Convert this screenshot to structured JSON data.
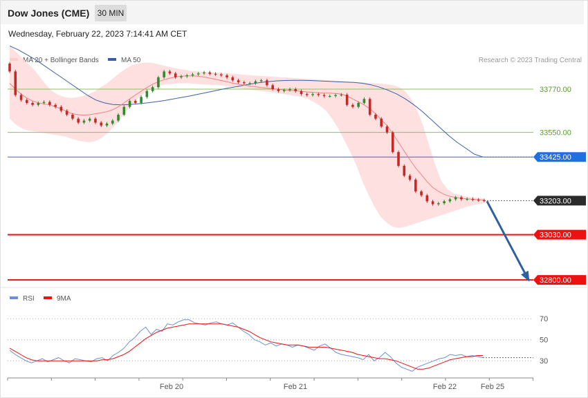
{
  "header": {
    "title": "Dow Jones (CME)",
    "timeframe": "30 MIN"
  },
  "timestamp": "Wednesday, February 22, 2023 7:14:41 AM CET",
  "legend": {
    "ma20": "MA 20 + Bollinger Bands",
    "ma50": "MA 50",
    "rsi": "RSI",
    "ma9": "9MA"
  },
  "credit": "Research © 2023 Trading Central",
  "colors": {
    "bullish": "#2e8b2e",
    "bearish": "#c62828",
    "bollinger": "#ffdada",
    "ma20": "#f08080",
    "ma50": "#3a5fa8",
    "pivot": "#3366dd",
    "support": "#ee1111",
    "resistance": "#8cc060",
    "rsi": "#6a8fd8",
    "rsi_ma": "#ee1111",
    "arrow": "#2f5f9f"
  },
  "chart_data": [
    {
      "type": "candlestick",
      "title": "Dow Jones (CME)",
      "timeframe": "30 MIN",
      "x_ticks": [
        "Feb 20",
        "Feb 21",
        "Feb 22",
        "Feb 25"
      ],
      "y_range": [
        32790,
        33900
      ],
      "levels": [
        {
          "label": "33770.00",
          "value": 33770,
          "kind": "resistance"
        },
        {
          "label": "33550.00",
          "value": 33550,
          "kind": "resistance"
        },
        {
          "label": "33425.00",
          "value": 33425,
          "kind": "pivot"
        },
        {
          "label": "33203.00",
          "value": 33203,
          "kind": "last"
        },
        {
          "label": "33030.00",
          "value": 33030,
          "kind": "support"
        },
        {
          "label": "32800.00",
          "value": 32800,
          "kind": "support"
        }
      ],
      "close_path": [
        33860,
        33740,
        33715,
        33700,
        33690,
        33700,
        33705,
        33690,
        33680,
        33660,
        33640,
        33620,
        33600,
        33610,
        33620,
        33600,
        33585,
        33595,
        33610,
        33640,
        33680,
        33710,
        33700,
        33730,
        33760,
        33780,
        33830,
        33860,
        33850,
        33830,
        33835,
        33840,
        33845,
        33850,
        33855,
        33848,
        33845,
        33840,
        33830,
        33815,
        33805,
        33800,
        33800,
        33810,
        33815,
        33790,
        33770,
        33760,
        33765,
        33770,
        33760,
        33745,
        33740,
        33745,
        33740,
        33735,
        33735,
        33740,
        33742,
        33690,
        33680,
        33700,
        33720,
        33640,
        33620,
        33580,
        33550,
        33450,
        33380,
        33330,
        33310,
        33250,
        33230,
        33200,
        33185,
        33190,
        33200,
        33210,
        33220,
        33210,
        33212,
        33208,
        33205,
        33203
      ],
      "ma20": [
        33800,
        33770,
        33745,
        33725,
        33710,
        33700,
        33695,
        33690,
        33680,
        33670,
        33655,
        33645,
        33640,
        33638,
        33640,
        33645,
        33650,
        33655,
        33665,
        33680,
        33700,
        33720,
        33740,
        33760,
        33778,
        33795,
        33808,
        33818,
        33826,
        33832,
        33836,
        33838,
        33838,
        33836,
        33832,
        33826,
        33820,
        33814,
        33808,
        33800,
        33795,
        33790,
        33786,
        33782,
        33778,
        33775,
        33772,
        33769,
        33766,
        33764,
        33762,
        33759,
        33756,
        33754,
        33752,
        33750,
        33750,
        33748,
        33745,
        33735,
        33720,
        33705,
        33690,
        33670,
        33645,
        33615,
        33585,
        33545,
        33500,
        33455,
        33410,
        33370,
        33335,
        33300,
        33270,
        33250,
        33235,
        33225,
        33220,
        33215,
        33212,
        33210,
        33208,
        33206
      ],
      "ma50": [
        33990,
        33970,
        33945,
        33920,
        33890,
        33860,
        33830,
        33800,
        33770,
        33740,
        33715,
        33700,
        33692,
        33690,
        33692,
        33696,
        33700,
        33706,
        33712,
        33720,
        33728,
        33736,
        33745,
        33754,
        33763,
        33772,
        33780,
        33788,
        33796,
        33803,
        33808,
        33812,
        33814,
        33815,
        33815,
        33814,
        33812,
        33810,
        33808,
        33806,
        33804,
        33800,
        33792,
        33780,
        33764,
        33745,
        33720,
        33690,
        33655,
        33615,
        33575,
        33535,
        33500,
        33470,
        33440,
        33425
      ],
      "bollinger_upper": [
        33990,
        33960,
        33930,
        33900,
        33870,
        33830,
        33790,
        33760,
        33740,
        33730,
        33725,
        33728,
        33735,
        33745,
        33760,
        33780,
        33800,
        33825,
        33850,
        33872,
        33890,
        33900,
        33905,
        33905,
        33900,
        33892,
        33885,
        33878,
        33872,
        33867,
        33863,
        33860,
        33858,
        33856,
        33854,
        33852,
        33850,
        33848,
        33845,
        33842,
        33840,
        33838,
        33836,
        33834,
        33832,
        33830,
        33828,
        33826,
        33824,
        33822,
        33820,
        33818,
        33816,
        33814,
        33812,
        33810,
        33808,
        33806,
        33804,
        33802,
        33800,
        33798,
        33795,
        33790,
        33780,
        33760,
        33720,
        33660,
        33580,
        33480,
        33380,
        33300,
        33260,
        33240,
        33232,
        33225,
        33220,
        33218,
        33215
      ],
      "bollinger_lower": [
        33620,
        33590,
        33570,
        33560,
        33555,
        33550,
        33545,
        33540,
        33535,
        33530,
        33520,
        33510,
        33505,
        33500,
        33505,
        33520,
        33545,
        33575,
        33610,
        33650,
        33690,
        33720,
        33745,
        33765,
        33780,
        33790,
        33795,
        33798,
        33800,
        33800,
        33798,
        33796,
        33794,
        33792,
        33790,
        33788,
        33784,
        33780,
        33775,
        33770,
        33766,
        33762,
        33758,
        33754,
        33750,
        33745,
        33740,
        33735,
        33730,
        33720,
        33705,
        33685,
        33660,
        33620,
        33570,
        33510,
        33450,
        33380,
        33300,
        33230,
        33170,
        33120,
        33090,
        33070,
        33065,
        33070,
        33080,
        33090,
        33100,
        33110,
        33120,
        33130,
        33140,
        33150,
        33160,
        33170,
        33180,
        33185,
        33190
      ],
      "forecast_arrow": {
        "from": 33200,
        "to": 32800
      }
    },
    {
      "type": "line",
      "title": "RSI",
      "y_ticks": [
        70,
        50,
        30
      ],
      "y_range": [
        15,
        80
      ],
      "series": [
        {
          "name": "RSI",
          "values": [
            40,
            36,
            33,
            30,
            28,
            30,
            32,
            29,
            31,
            33,
            30,
            28,
            32,
            31,
            30,
            29,
            32,
            33,
            30,
            35,
            38,
            42,
            48,
            52,
            58,
            62,
            55,
            60,
            58,
            65,
            64,
            67,
            69,
            69,
            66,
            65,
            64,
            66,
            67,
            65,
            64,
            66,
            62,
            58,
            55,
            50,
            48,
            45,
            47,
            44,
            46,
            45,
            43,
            45,
            44,
            42,
            40,
            44,
            46,
            42,
            38,
            36,
            35,
            34,
            33,
            31,
            36,
            30,
            33,
            38,
            34,
            28,
            24,
            22,
            20,
            24,
            26,
            28,
            30,
            32,
            33,
            36,
            35,
            36,
            34,
            35,
            34,
            33
          ]
        },
        {
          "name": "9MA",
          "values": [
            42,
            39,
            36,
            33,
            31,
            30,
            30,
            30,
            30,
            30,
            30,
            30,
            30,
            30,
            30,
            30,
            30,
            31,
            31,
            32,
            34,
            36,
            39,
            43,
            47,
            51,
            54,
            57,
            59,
            61,
            62,
            63,
            64,
            65,
            65,
            65,
            65,
            65,
            65,
            65,
            64,
            63,
            62,
            60,
            58,
            55,
            52,
            50,
            48,
            47,
            46,
            45,
            45,
            45,
            44,
            43,
            43,
            43,
            43,
            42,
            41,
            40,
            39,
            38,
            36,
            35,
            34,
            33,
            32,
            32,
            31,
            30,
            28,
            26,
            24,
            22,
            22,
            23,
            25,
            27,
            29,
            31,
            32,
            33,
            34,
            34,
            35,
            35
          ]
        }
      ]
    }
  ]
}
